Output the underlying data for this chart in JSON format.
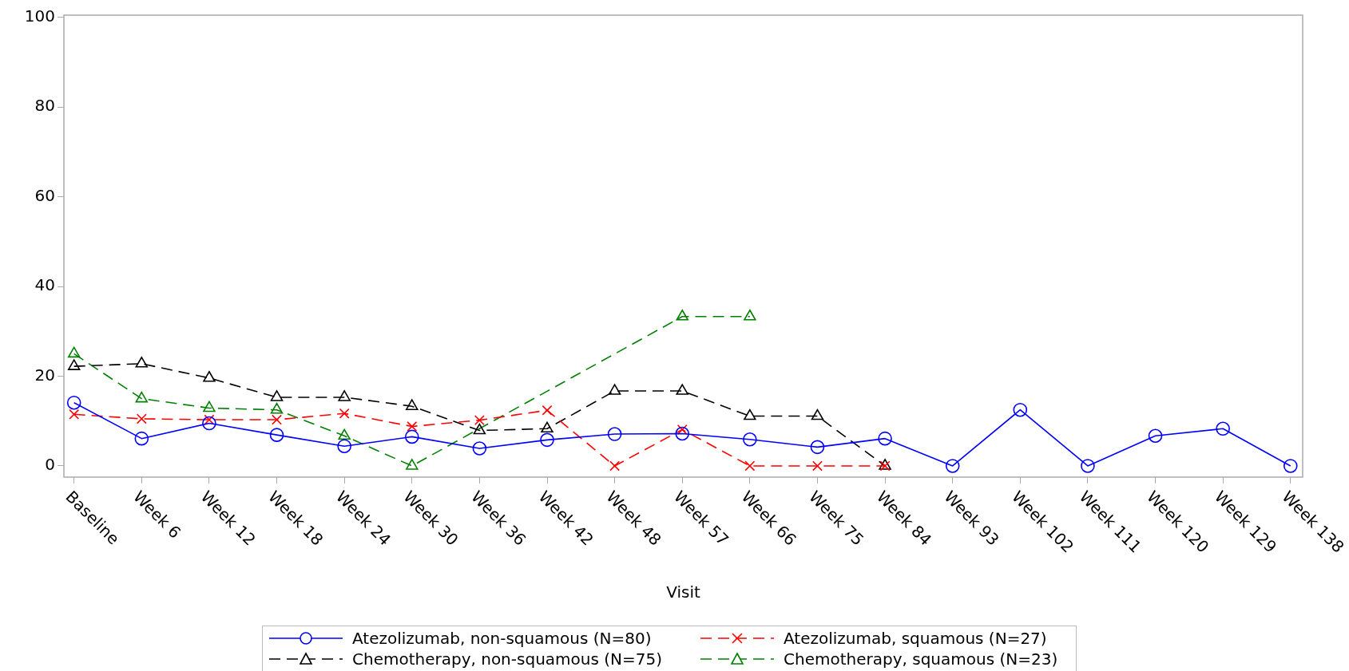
{
  "chart_data": {
    "type": "line",
    "xlabel": "Visit",
    "categories": [
      "Baseline",
      "Week 6",
      "Week 12",
      "Week 18",
      "Week 24",
      "Week 30",
      "Week 36",
      "Week 42",
      "Week 48",
      "Week 57",
      "Week 66",
      "Week 75",
      "Week 84",
      "Week 93",
      "Week 102",
      "Week 111",
      "Week 120",
      "Week 129",
      "Week 138"
    ],
    "ylim": [
      -2.5,
      100.5
    ],
    "yticks": [
      0,
      20,
      40,
      60,
      80,
      100
    ],
    "legend": "bottom",
    "series": [
      {
        "name": "Atezolizumab, non-squamous (N=80)",
        "color": "#0000ff",
        "marker": "circle",
        "line_style": "solid",
        "values": [
          14.1,
          6.1,
          9.5,
          6.9,
          4.4,
          6.5,
          3.9,
          5.8,
          7.1,
          7.2,
          5.9,
          4.2,
          6.1,
          0,
          12.5,
          0,
          6.7,
          8.3,
          0
        ]
      },
      {
        "name": "Atezolizumab, squamous (N=27)",
        "color": "#ff0000",
        "marker": "cross",
        "line_style": "dashed",
        "values": [
          11.5,
          10.5,
          10.3,
          10.3,
          11.7,
          8.8,
          10.2,
          12.4,
          0,
          8.1,
          0,
          0,
          0,
          null,
          null,
          null,
          null,
          null,
          null
        ]
      },
      {
        "name": "Chemotherapy, non-squamous (N=75)",
        "color": "#000000",
        "marker": "triangle",
        "line_style": "dashed",
        "values": [
          22.2,
          22.8,
          19.6,
          15.3,
          15.3,
          13.3,
          7.9,
          8.3,
          16.7,
          16.7,
          11.1,
          11.1,
          0,
          null,
          null,
          null,
          null,
          null,
          null
        ]
      },
      {
        "name": "Chemotherapy, squamous (N=23)",
        "color": "#008000",
        "marker": "triangle",
        "line_style": "dashed",
        "values": [
          25,
          15,
          12.9,
          12.5,
          6.7,
          0,
          null,
          null,
          null,
          33.3,
          33.3,
          null,
          null,
          null,
          null,
          null,
          null,
          null,
          null
        ]
      }
    ]
  }
}
